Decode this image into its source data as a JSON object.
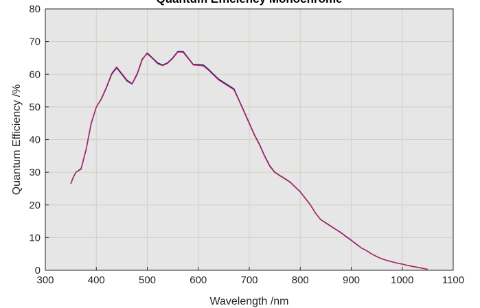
{
  "chart_data": {
    "type": "line",
    "title": "Quantum Efficiency Monochrome",
    "xlabel": "Wavelength /nm",
    "ylabel": "Quantum Efficiency /%",
    "xlim": [
      300,
      1100
    ],
    "ylim": [
      0,
      80
    ],
    "xticks": [
      300,
      400,
      500,
      600,
      700,
      800,
      900,
      1000,
      1100
    ],
    "yticks": [
      0,
      10,
      20,
      30,
      40,
      50,
      60,
      70,
      80
    ],
    "grid": true,
    "colors": {
      "plot_background": "#e6e6e6",
      "grid": "#d0d0c0",
      "series_a": "#1a237e",
      "series_b": "#e0205a"
    },
    "series": [
      {
        "x": [
          350,
          355,
          360,
          370,
          380,
          390,
          400,
          410,
          420,
          430,
          440,
          450,
          460,
          470,
          480,
          490,
          500,
          510,
          520,
          530,
          540,
          550,
          560,
          570,
          580,
          590,
          600,
          610,
          620,
          630,
          640,
          650,
          660,
          670,
          680,
          690,
          700,
          710,
          720,
          730,
          740,
          750,
          760,
          770,
          780,
          790,
          800,
          810,
          820,
          830,
          840,
          850,
          860,
          870,
          880,
          890,
          900,
          910,
          920,
          930,
          940,
          950,
          960,
          970,
          980,
          990,
          1000,
          1010,
          1020,
          1030,
          1040,
          1050
        ],
        "values": [
          26.5,
          28.5,
          30,
          31,
          37,
          45,
          50,
          52.5,
          56,
          60,
          62,
          60,
          58,
          57,
          60,
          64.5,
          66.5,
          65,
          63.5,
          62.8,
          63.5,
          65,
          67,
          67,
          65,
          63,
          63,
          62.8,
          61.5,
          60,
          58.5,
          57.5,
          56.5,
          55.5,
          52,
          48.5,
          45,
          41.5,
          38.5,
          35,
          32,
          30,
          29,
          28,
          27,
          25.5,
          24,
          22,
          20,
          17.5,
          15.5,
          14.5,
          13.5,
          12.5,
          11.5,
          10.3,
          9.2,
          8,
          6.8,
          6,
          5,
          4.2,
          3.5,
          3,
          2.6,
          2.2,
          1.9,
          1.5,
          1.2,
          0.9,
          0.6,
          0.3
        ]
      },
      {
        "x": [
          350,
          355,
          360,
          370,
          380,
          390,
          400,
          410,
          420,
          430,
          440,
          450,
          460,
          470,
          480,
          490,
          500,
          510,
          520,
          530,
          540,
          550,
          560,
          570,
          580,
          590,
          600,
          610,
          620,
          630,
          640,
          650,
          660,
          670,
          680,
          690,
          700,
          710,
          720,
          730,
          740,
          750,
          760,
          770,
          780,
          790,
          800,
          810,
          820,
          830,
          840,
          850,
          860,
          870,
          880,
          890,
          900,
          910,
          920,
          930,
          940,
          950,
          960,
          970,
          980,
          990,
          1000,
          1010,
          1020,
          1030,
          1040,
          1050
        ],
        "values": [
          26.4,
          28.4,
          30,
          31.2,
          37.2,
          45.2,
          50,
          52.7,
          56.2,
          60.3,
          62.3,
          60.3,
          58.3,
          57.2,
          60.3,
          64.8,
          66.2,
          64.8,
          63.2,
          62.6,
          63.3,
          64.8,
          66.8,
          66.7,
          64.8,
          62.8,
          62.7,
          62.5,
          61.2,
          59.7,
          58.2,
          57.2,
          56.2,
          55.2,
          51.8,
          48.3,
          44.8,
          41.3,
          38.3,
          34.8,
          31.8,
          29.9,
          28.9,
          27.9,
          26.9,
          25.4,
          23.9,
          21.9,
          19.9,
          17.4,
          15.5,
          14.4,
          13.4,
          12.4,
          11.4,
          10.2,
          9.1,
          7.9,
          6.8,
          6,
          5,
          4.2,
          3.5,
          3,
          2.6,
          2.2,
          1.9,
          1.5,
          1.2,
          0.9,
          0.6,
          0.3
        ]
      }
    ]
  }
}
